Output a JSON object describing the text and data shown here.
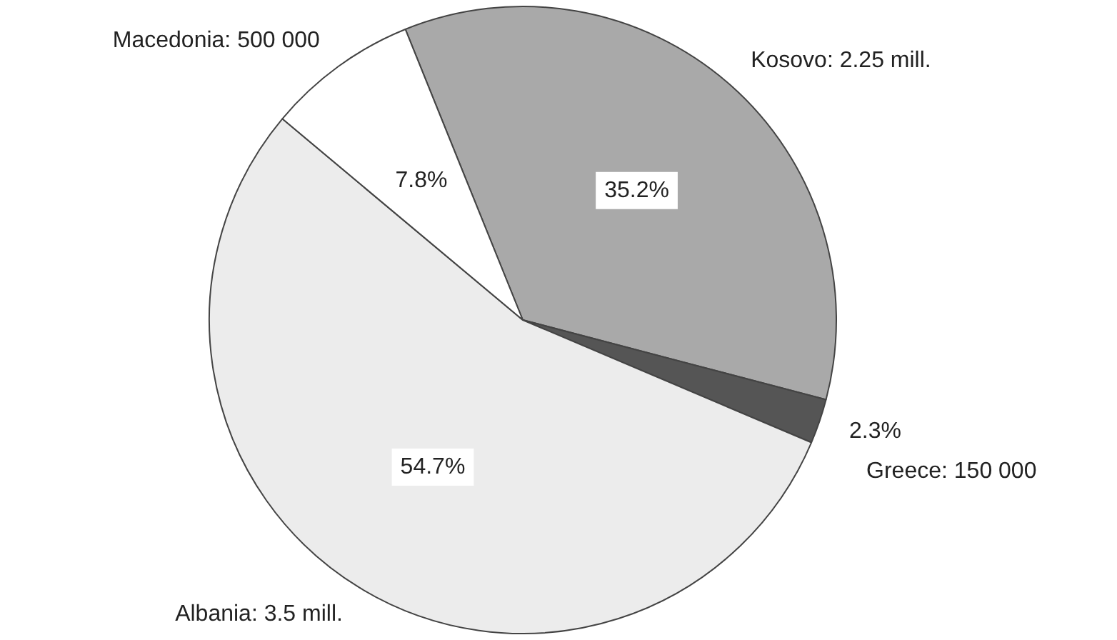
{
  "chart_data": {
    "type": "pie",
    "categories": [
      "Kosovo: 2.25 mill.",
      "Greece: 150 000",
      "Albania: 3.5 mill.",
      "Macedonia: 500 000"
    ],
    "values": [
      35.2,
      2.3,
      54.7,
      7.8
    ],
    "value_labels": [
      "35.2%",
      "2.3%",
      "54.7%",
      "7.8%"
    ],
    "colors": [
      "#a9a9a9",
      "#555555",
      "#ececec",
      "#ffffff"
    ],
    "legend": false
  }
}
